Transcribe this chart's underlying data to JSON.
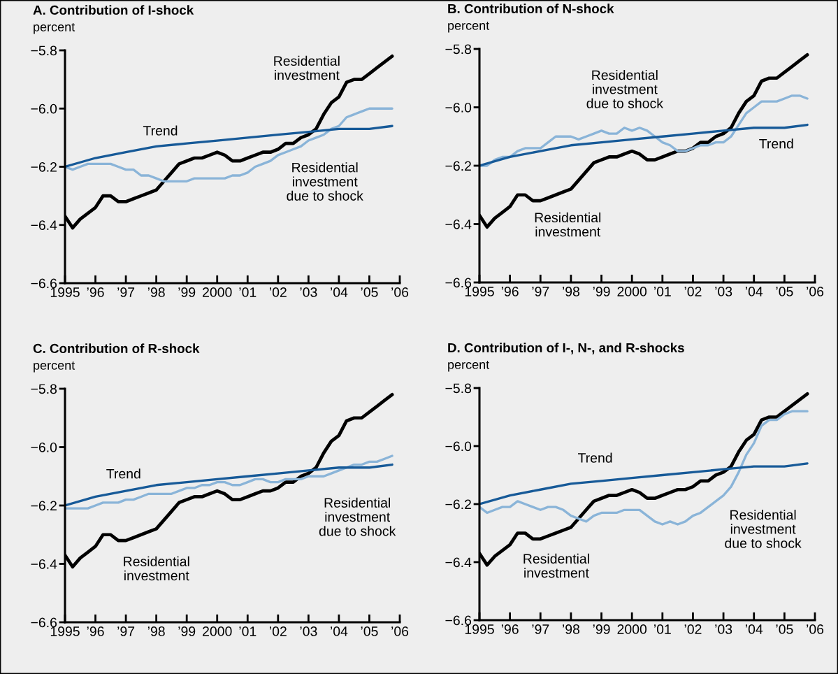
{
  "chart_data": [
    {
      "type": "line",
      "title": "A. Contribution of I-shock",
      "ylabel": "percent",
      "x": [
        1995,
        1995.25,
        1995.5,
        1995.75,
        1996,
        1996.25,
        1996.5,
        1996.75,
        1997,
        1997.25,
        1997.5,
        1997.75,
        1998,
        1998.25,
        1998.5,
        1998.75,
        1999,
        1999.25,
        1999.5,
        1999.75,
        2000,
        2000.25,
        2000.5,
        2000.75,
        2001,
        2001.25,
        2001.5,
        2001.75,
        2002,
        2002.25,
        2002.5,
        2002.75,
        2003,
        2003.25,
        2003.5,
        2003.75,
        2004,
        2004.25,
        2004.5,
        2004.75,
        2005,
        2005.25,
        2005.5,
        2005.75
      ],
      "series": [
        {
          "name": "Residential\ninvestment",
          "color": "#000000",
          "values": [
            -6.37,
            -6.41,
            -6.38,
            -6.36,
            -6.34,
            -6.3,
            -6.3,
            -6.32,
            -6.32,
            -6.31,
            -6.3,
            -6.29,
            -6.28,
            -6.25,
            -6.22,
            -6.19,
            -6.18,
            -6.17,
            -6.17,
            -6.16,
            -6.15,
            -6.16,
            -6.18,
            -6.18,
            -6.17,
            -6.16,
            -6.15,
            -6.15,
            -6.14,
            -6.12,
            -6.12,
            -6.1,
            -6.09,
            -6.07,
            -6.02,
            -5.98,
            -5.96,
            -5.91,
            -5.9,
            -5.9,
            -5.88,
            -5.86,
            -5.84,
            -5.82
          ]
        },
        {
          "name": "Residential\ninvestment\ndue to shock",
          "color": "#8ab4d8",
          "values": [
            -6.2,
            -6.21,
            -6.2,
            -6.19,
            -6.19,
            -6.19,
            -6.19,
            -6.2,
            -6.21,
            -6.21,
            -6.23,
            -6.23,
            -6.24,
            -6.25,
            -6.25,
            -6.25,
            -6.25,
            -6.24,
            -6.24,
            -6.24,
            -6.24,
            -6.24,
            -6.23,
            -6.23,
            -6.22,
            -6.2,
            -6.19,
            -6.18,
            -6.16,
            -6.15,
            -6.14,
            -6.13,
            -6.11,
            -6.1,
            -6.09,
            -6.07,
            -6.06,
            -6.03,
            -6.02,
            -6.01,
            -6.0,
            -6.0,
            -6.0,
            -6.0
          ]
        },
        {
          "name": "Trend",
          "color": "#175a98",
          "x": [
            1995,
            1996,
            1997,
            1998,
            1999,
            2000,
            2001,
            2002,
            2003,
            2004,
            2005,
            2005.75
          ],
          "values": [
            -6.2,
            -6.17,
            -6.15,
            -6.13,
            -6.12,
            -6.11,
            -6.1,
            -6.09,
            -6.08,
            -6.07,
            -6.07,
            -6.06
          ]
        }
      ],
      "xlim": [
        1995,
        2006
      ],
      "xticks": [
        1995,
        {
          "value": 1996,
          "label": "’96"
        },
        {
          "value": 1997,
          "label": "’97"
        },
        {
          "value": 1998,
          "label": "’98"
        },
        {
          "value": 1999,
          "label": "’99"
        },
        2000,
        {
          "value": 2001,
          "label": "’01"
        },
        {
          "value": 2002,
          "label": "’02"
        },
        {
          "value": 2003,
          "label": "’03"
        },
        {
          "value": 2004,
          "label": "’04"
        },
        {
          "value": 2005,
          "label": "’05"
        },
        {
          "value": 2006,
          "label": "’06"
        }
      ],
      "ylim": [
        -6.6,
        -5.8
      ],
      "yticks": [
        {
          "value": -6.6,
          "label": "−6.6"
        },
        {
          "value": -6.4,
          "label": "−6.4"
        },
        {
          "value": -6.2,
          "label": "−6.2"
        },
        {
          "value": -6.0,
          "label": "−6.0"
        },
        {
          "value": -5.8,
          "label": "−5.8"
        }
      ]
    },
    {
      "type": "line",
      "title": "B. Contribution of N-shock",
      "ylabel": "percent",
      "x": [
        1995,
        1995.25,
        1995.5,
        1995.75,
        1996,
        1996.25,
        1996.5,
        1996.75,
        1997,
        1997.25,
        1997.5,
        1997.75,
        1998,
        1998.25,
        1998.5,
        1998.75,
        1999,
        1999.25,
        1999.5,
        1999.75,
        2000,
        2000.25,
        2000.5,
        2000.75,
        2001,
        2001.25,
        2001.5,
        2001.75,
        2002,
        2002.25,
        2002.5,
        2002.75,
        2003,
        2003.25,
        2003.5,
        2003.75,
        2004,
        2004.25,
        2004.5,
        2004.75,
        2005,
        2005.25,
        2005.5,
        2005.75
      ],
      "series": [
        {
          "name": "Residential\ninvestment",
          "color": "#000000",
          "values": [
            -6.37,
            -6.41,
            -6.38,
            -6.36,
            -6.34,
            -6.3,
            -6.3,
            -6.32,
            -6.32,
            -6.31,
            -6.3,
            -6.29,
            -6.28,
            -6.25,
            -6.22,
            -6.19,
            -6.18,
            -6.17,
            -6.17,
            -6.16,
            -6.15,
            -6.16,
            -6.18,
            -6.18,
            -6.17,
            -6.16,
            -6.15,
            -6.15,
            -6.14,
            -6.12,
            -6.12,
            -6.1,
            -6.09,
            -6.07,
            -6.02,
            -5.98,
            -5.96,
            -5.91,
            -5.9,
            -5.9,
            -5.88,
            -5.86,
            -5.84,
            -5.82
          ]
        },
        {
          "name": "Residential\ninvestment\ndue to shock",
          "color": "#8ab4d8",
          "values": [
            -6.2,
            -6.2,
            -6.18,
            -6.17,
            -6.17,
            -6.15,
            -6.14,
            -6.14,
            -6.14,
            -6.12,
            -6.1,
            -6.1,
            -6.1,
            -6.11,
            -6.1,
            -6.09,
            -6.08,
            -6.09,
            -6.09,
            -6.07,
            -6.08,
            -6.07,
            -6.08,
            -6.1,
            -6.12,
            -6.13,
            -6.15,
            -6.15,
            -6.14,
            -6.13,
            -6.13,
            -6.12,
            -6.12,
            -6.1,
            -6.06,
            -6.02,
            -6.0,
            -5.98,
            -5.98,
            -5.98,
            -5.97,
            -5.96,
            -5.96,
            -5.97
          ]
        },
        {
          "name": "Trend",
          "color": "#175a98",
          "x": [
            1995,
            1996,
            1997,
            1998,
            1999,
            2000,
            2001,
            2002,
            2003,
            2004,
            2005,
            2005.75
          ],
          "values": [
            -6.2,
            -6.17,
            -6.15,
            -6.13,
            -6.12,
            -6.11,
            -6.1,
            -6.09,
            -6.08,
            -6.07,
            -6.07,
            -6.06
          ]
        }
      ],
      "xlim": [
        1995,
        2006
      ],
      "xticks": [
        1995,
        {
          "value": 1996,
          "label": "’96"
        },
        {
          "value": 1997,
          "label": "’97"
        },
        {
          "value": 1998,
          "label": "’98"
        },
        {
          "value": 1999,
          "label": "’99"
        },
        2000,
        {
          "value": 2001,
          "label": "’01"
        },
        {
          "value": 2002,
          "label": "’02"
        },
        {
          "value": 2003,
          "label": "’03"
        },
        {
          "value": 2004,
          "label": "’04"
        },
        {
          "value": 2005,
          "label": "’05"
        },
        {
          "value": 2006,
          "label": "’06"
        }
      ],
      "ylim": [
        -6.6,
        -5.8
      ],
      "yticks": [
        {
          "value": -6.6,
          "label": "−6.6"
        },
        {
          "value": -6.4,
          "label": "−6.4"
        },
        {
          "value": -6.2,
          "label": "−6.2"
        },
        {
          "value": -6.0,
          "label": "−6.0"
        },
        {
          "value": -5.8,
          "label": "−5.8"
        }
      ]
    },
    {
      "type": "line",
      "title": "C. Contribution of R-shock",
      "ylabel": "percent",
      "x": [
        1995,
        1995.25,
        1995.5,
        1995.75,
        1996,
        1996.25,
        1996.5,
        1996.75,
        1997,
        1997.25,
        1997.5,
        1997.75,
        1998,
        1998.25,
        1998.5,
        1998.75,
        1999,
        1999.25,
        1999.5,
        1999.75,
        2000,
        2000.25,
        2000.5,
        2000.75,
        2001,
        2001.25,
        2001.5,
        2001.75,
        2002,
        2002.25,
        2002.5,
        2002.75,
        2003,
        2003.25,
        2003.5,
        2003.75,
        2004,
        2004.25,
        2004.5,
        2004.75,
        2005,
        2005.25,
        2005.5,
        2005.75
      ],
      "series": [
        {
          "name": "Residential\ninvestment",
          "color": "#000000",
          "values": [
            -6.37,
            -6.41,
            -6.38,
            -6.36,
            -6.34,
            -6.3,
            -6.3,
            -6.32,
            -6.32,
            -6.31,
            -6.3,
            -6.29,
            -6.28,
            -6.25,
            -6.22,
            -6.19,
            -6.18,
            -6.17,
            -6.17,
            -6.16,
            -6.15,
            -6.16,
            -6.18,
            -6.18,
            -6.17,
            -6.16,
            -6.15,
            -6.15,
            -6.14,
            -6.12,
            -6.12,
            -6.1,
            -6.09,
            -6.07,
            -6.02,
            -5.98,
            -5.96,
            -5.91,
            -5.9,
            -5.9,
            -5.88,
            -5.86,
            -5.84,
            -5.82
          ]
        },
        {
          "name": "Residential\ninvestment\ndue to shock",
          "color": "#8ab4d8",
          "values": [
            -6.21,
            -6.21,
            -6.21,
            -6.21,
            -6.2,
            -6.19,
            -6.19,
            -6.19,
            -6.18,
            -6.18,
            -6.17,
            -6.16,
            -6.16,
            -6.16,
            -6.16,
            -6.15,
            -6.14,
            -6.14,
            -6.13,
            -6.13,
            -6.12,
            -6.12,
            -6.13,
            -6.13,
            -6.12,
            -6.11,
            -6.11,
            -6.12,
            -6.12,
            -6.11,
            -6.11,
            -6.11,
            -6.1,
            -6.1,
            -6.1,
            -6.09,
            -6.08,
            -6.07,
            -6.06,
            -6.06,
            -6.05,
            -6.05,
            -6.04,
            -6.03
          ]
        },
        {
          "name": "Trend",
          "color": "#175a98",
          "x": [
            1995,
            1996,
            1997,
            1998,
            1999,
            2000,
            2001,
            2002,
            2003,
            2004,
            2005,
            2005.75
          ],
          "values": [
            -6.2,
            -6.17,
            -6.15,
            -6.13,
            -6.12,
            -6.11,
            -6.1,
            -6.09,
            -6.08,
            -6.07,
            -6.07,
            -6.06
          ]
        }
      ],
      "xlim": [
        1995,
        2006
      ],
      "xticks": [
        1995,
        {
          "value": 1996,
          "label": "’96"
        },
        {
          "value": 1997,
          "label": "’97"
        },
        {
          "value": 1998,
          "label": "’98"
        },
        {
          "value": 1999,
          "label": "’99"
        },
        2000,
        {
          "value": 2001,
          "label": "’01"
        },
        {
          "value": 2002,
          "label": "’02"
        },
        {
          "value": 2003,
          "label": "’03"
        },
        {
          "value": 2004,
          "label": "’04"
        },
        {
          "value": 2005,
          "label": "’05"
        },
        {
          "value": 2006,
          "label": "’06"
        }
      ],
      "ylim": [
        -6.6,
        -5.8
      ],
      "yticks": [
        {
          "value": -6.6,
          "label": "−6.6"
        },
        {
          "value": -6.4,
          "label": "−6.4"
        },
        {
          "value": -6.2,
          "label": "−6.2"
        },
        {
          "value": -6.0,
          "label": "−6.0"
        },
        {
          "value": -5.8,
          "label": "−5.8"
        }
      ]
    },
    {
      "type": "line",
      "title": "D. Contribution of I-, N-, and R-shocks",
      "ylabel": "percent",
      "x": [
        1995,
        1995.25,
        1995.5,
        1995.75,
        1996,
        1996.25,
        1996.5,
        1996.75,
        1997,
        1997.25,
        1997.5,
        1997.75,
        1998,
        1998.25,
        1998.5,
        1998.75,
        1999,
        1999.25,
        1999.5,
        1999.75,
        2000,
        2000.25,
        2000.5,
        2000.75,
        2001,
        2001.25,
        2001.5,
        2001.75,
        2002,
        2002.25,
        2002.5,
        2002.75,
        2003,
        2003.25,
        2003.5,
        2003.75,
        2004,
        2004.25,
        2004.5,
        2004.75,
        2005,
        2005.25,
        2005.5,
        2005.75
      ],
      "series": [
        {
          "name": "Residential\ninvestment",
          "color": "#000000",
          "values": [
            -6.37,
            -6.41,
            -6.38,
            -6.36,
            -6.34,
            -6.3,
            -6.3,
            -6.32,
            -6.32,
            -6.31,
            -6.3,
            -6.29,
            -6.28,
            -6.25,
            -6.22,
            -6.19,
            -6.18,
            -6.17,
            -6.17,
            -6.16,
            -6.15,
            -6.16,
            -6.18,
            -6.18,
            -6.17,
            -6.16,
            -6.15,
            -6.15,
            -6.14,
            -6.12,
            -6.12,
            -6.1,
            -6.09,
            -6.07,
            -6.02,
            -5.98,
            -5.96,
            -5.91,
            -5.9,
            -5.9,
            -5.88,
            -5.86,
            -5.84,
            -5.82
          ]
        },
        {
          "name": "Residential\ninvestment\ndue to shock",
          "color": "#8ab4d8",
          "values": [
            -6.21,
            -6.23,
            -6.22,
            -6.21,
            -6.21,
            -6.19,
            -6.2,
            -6.21,
            -6.22,
            -6.21,
            -6.21,
            -6.22,
            -6.24,
            -6.25,
            -6.26,
            -6.24,
            -6.23,
            -6.23,
            -6.23,
            -6.22,
            -6.22,
            -6.22,
            -6.24,
            -6.26,
            -6.27,
            -6.26,
            -6.27,
            -6.26,
            -6.24,
            -6.23,
            -6.21,
            -6.19,
            -6.17,
            -6.14,
            -6.09,
            -6.03,
            -5.99,
            -5.93,
            -5.91,
            -5.91,
            -5.89,
            -5.88,
            -5.88,
            -5.88
          ]
        },
        {
          "name": "Trend",
          "color": "#175a98",
          "x": [
            1995,
            1996,
            1997,
            1998,
            1999,
            2000,
            2001,
            2002,
            2003,
            2004,
            2005,
            2005.75
          ],
          "values": [
            -6.2,
            -6.17,
            -6.15,
            -6.13,
            -6.12,
            -6.11,
            -6.1,
            -6.09,
            -6.08,
            -6.07,
            -6.07,
            -6.06
          ]
        }
      ],
      "xlim": [
        1995,
        2006
      ],
      "xticks": [
        1995,
        {
          "value": 1996,
          "label": "’96"
        },
        {
          "value": 1997,
          "label": "’97"
        },
        {
          "value": 1998,
          "label": "’98"
        },
        {
          "value": 1999,
          "label": "’99"
        },
        2000,
        {
          "value": 2001,
          "label": "’01"
        },
        {
          "value": 2002,
          "label": "’02"
        },
        {
          "value": 2003,
          "label": "’03"
        },
        {
          "value": 2004,
          "label": "’04"
        },
        {
          "value": 2005,
          "label": "’05"
        },
        {
          "value": 2006,
          "label": "’06"
        }
      ],
      "ylim": [
        -6.6,
        -5.8
      ],
      "yticks": [
        {
          "value": -6.6,
          "label": "−6.6"
        },
        {
          "value": -6.4,
          "label": "−6.4"
        },
        {
          "value": -6.2,
          "label": "−6.2"
        },
        {
          "value": -6.0,
          "label": "−6.0"
        },
        {
          "value": -5.8,
          "label": "−5.8"
        }
      ]
    }
  ]
}
